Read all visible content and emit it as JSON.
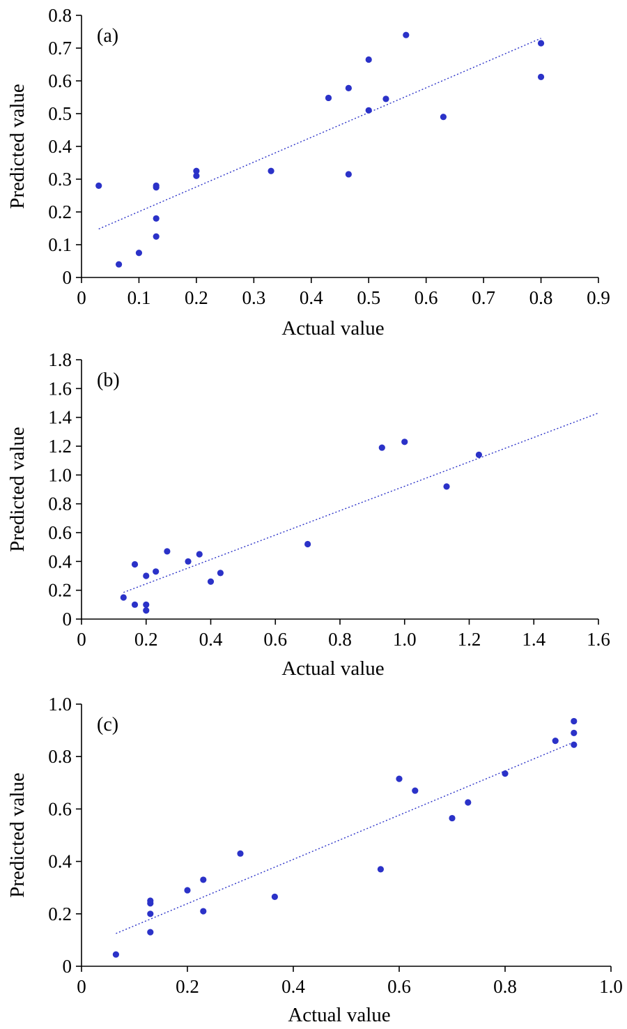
{
  "chart_data": [
    {
      "type": "scatter",
      "panel_label": "(a)",
      "xlabel": "Actual value",
      "ylabel": "Predicted value",
      "xlim": [
        0,
        0.9
      ],
      "ylim": [
        0,
        0.8
      ],
      "xticks": [
        "0",
        "0.1",
        "0.2",
        "0.3",
        "0.4",
        "0.5",
        "0.6",
        "0.7",
        "0.8",
        "0.9"
      ],
      "yticks": [
        "0",
        "0.1",
        "0.2",
        "0.3",
        "0.4",
        "0.5",
        "0.6",
        "0.7",
        "0.8"
      ],
      "points": [
        [
          0.03,
          0.28
        ],
        [
          0.065,
          0.04
        ],
        [
          0.1,
          0.075
        ],
        [
          0.13,
          0.125
        ],
        [
          0.13,
          0.18
        ],
        [
          0.13,
          0.275
        ],
        [
          0.13,
          0.28
        ],
        [
          0.2,
          0.31
        ],
        [
          0.2,
          0.325
        ],
        [
          0.33,
          0.325
        ],
        [
          0.43,
          0.548
        ],
        [
          0.465,
          0.578
        ],
        [
          0.465,
          0.315
        ],
        [
          0.5,
          0.665
        ],
        [
          0.5,
          0.51
        ],
        [
          0.53,
          0.545
        ],
        [
          0.565,
          0.74
        ],
        [
          0.63,
          0.49
        ],
        [
          0.8,
          0.715
        ],
        [
          0.8,
          0.612
        ]
      ],
      "fit_line": [
        [
          0.03,
          0.148
        ],
        [
          0.8,
          0.73
        ]
      ],
      "color": "#2b32c8"
    },
    {
      "type": "scatter",
      "panel_label": "(b)",
      "xlabel": "Actual value",
      "ylabel": "Predicted value",
      "xlim": [
        0,
        1.6
      ],
      "ylim": [
        0,
        1.8
      ],
      "xticks": [
        "0",
        "0.2",
        "0.4",
        "0.6",
        "0.8",
        "1.0",
        "1.2",
        "1.4",
        "1.6"
      ],
      "yticks": [
        "0",
        "0.2",
        "0.4",
        "0.6",
        "0.8",
        "1.0",
        "1.2",
        "1.4",
        "1.6",
        "1.8"
      ],
      "points": [
        [
          0.13,
          0.15
        ],
        [
          0.165,
          0.38
        ],
        [
          0.165,
          0.1
        ],
        [
          0.2,
          0.3
        ],
        [
          0.2,
          0.1
        ],
        [
          0.2,
          0.06
        ],
        [
          0.23,
          0.33
        ],
        [
          0.265,
          0.47
        ],
        [
          0.33,
          0.4
        ],
        [
          0.365,
          0.45
        ],
        [
          0.4,
          0.26
        ],
        [
          0.43,
          0.32
        ],
        [
          0.7,
          0.52
        ],
        [
          0.93,
          1.19
        ],
        [
          1.0,
          1.23
        ],
        [
          1.13,
          0.92
        ],
        [
          1.23,
          1.14
        ]
      ],
      "fit_line": [
        [
          0.13,
          0.185
        ],
        [
          1.6,
          1.43
        ]
      ],
      "color": "#2b32c8"
    },
    {
      "type": "scatter",
      "panel_label": "(c)",
      "xlabel": "Actual value",
      "ylabel": "Predicted value",
      "xlim": [
        0,
        1.0
      ],
      "ylim": [
        0,
        1.0
      ],
      "xticks": [
        "0",
        "0.2",
        "0.4",
        "0.6",
        "0.8",
        "1.0"
      ],
      "yticks": [
        "0",
        "0.2",
        "0.4",
        "0.6",
        "0.8",
        "1.0"
      ],
      "points": [
        [
          0.065,
          0.045
        ],
        [
          0.13,
          0.13
        ],
        [
          0.13,
          0.2
        ],
        [
          0.13,
          0.24
        ],
        [
          0.13,
          0.25
        ],
        [
          0.2,
          0.29
        ],
        [
          0.23,
          0.21
        ],
        [
          0.23,
          0.33
        ],
        [
          0.3,
          0.43
        ],
        [
          0.365,
          0.265
        ],
        [
          0.565,
          0.37
        ],
        [
          0.6,
          0.715
        ],
        [
          0.63,
          0.67
        ],
        [
          0.7,
          0.565
        ],
        [
          0.73,
          0.625
        ],
        [
          0.8,
          0.735
        ],
        [
          0.895,
          0.86
        ],
        [
          0.93,
          0.935
        ],
        [
          0.93,
          0.89
        ],
        [
          0.93,
          0.845
        ]
      ],
      "fit_line": [
        [
          0.065,
          0.125
        ],
        [
          0.93,
          0.855
        ]
      ],
      "color": "#2b32c8"
    }
  ]
}
